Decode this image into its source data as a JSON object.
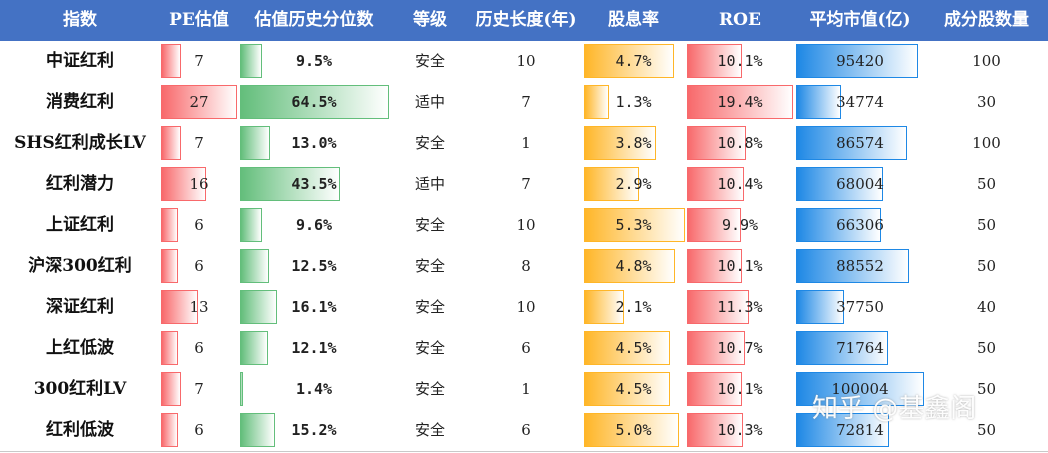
{
  "table": {
    "headers": [
      "指数",
      "PE估值",
      "估值历史分位数",
      "等级",
      "历史长度(年)",
      "股息率",
      "ROE",
      "平均市值(亿)",
      "成分股数量"
    ],
    "rows": [
      {
        "name": "中证红利",
        "pe": "7",
        "pct": "9.5%",
        "level": "安全",
        "years": "10",
        "div": "4.7%",
        "roe": "10.1%",
        "cap": "95420",
        "count": "100"
      },
      {
        "name": "消费红利",
        "pe": "27",
        "pct": "64.5%",
        "level": "适中",
        "years": "7",
        "div": "1.3%",
        "roe": "19.4%",
        "cap": "34774",
        "count": "30"
      },
      {
        "name": "SHS红利成长LV",
        "pe": "7",
        "pct": "13.0%",
        "level": "安全",
        "years": "1",
        "div": "3.8%",
        "roe": "10.8%",
        "cap": "86574",
        "count": "100"
      },
      {
        "name": "红利潜力",
        "pe": "16",
        "pct": "43.5%",
        "level": "适中",
        "years": "7",
        "div": "2.9%",
        "roe": "10.4%",
        "cap": "68004",
        "count": "50"
      },
      {
        "name": "上证红利",
        "pe": "6",
        "pct": "9.6%",
        "level": "安全",
        "years": "10",
        "div": "5.3%",
        "roe": "9.9%",
        "cap": "66306",
        "count": "50"
      },
      {
        "name": "沪深300红利",
        "pe": "6",
        "pct": "12.5%",
        "level": "安全",
        "years": "8",
        "div": "4.8%",
        "roe": "10.1%",
        "cap": "88552",
        "count": "50"
      },
      {
        "name": "深证红利",
        "pe": "13",
        "pct": "16.1%",
        "level": "安全",
        "years": "10",
        "div": "2.1%",
        "roe": "11.3%",
        "cap": "37750",
        "count": "40"
      },
      {
        "name": "上红低波",
        "pe": "6",
        "pct": "12.1%",
        "level": "安全",
        "years": "6",
        "div": "4.5%",
        "roe": "10.7%",
        "cap": "71764",
        "count": "50"
      },
      {
        "name": "300红利LV",
        "pe": "7",
        "pct": "1.4%",
        "level": "安全",
        "years": "1",
        "div": "4.5%",
        "roe": "10.1%",
        "cap": "100004",
        "count": "50"
      },
      {
        "name": "红利低波",
        "pe": "6",
        "pct": "15.2%",
        "level": "安全",
        "years": "6",
        "div": "5.0%",
        "roe": "10.3%",
        "cap": "72814",
        "count": "50"
      }
    ]
  },
  "watermark": "知乎 @基鑫阁",
  "colors": {
    "header": "#4472c4",
    "pe_bar": "#f8696b",
    "pct_bar": "#63be7b",
    "div_bar": "#ffb628",
    "roe_bar": "#f8696b",
    "cap_bar": "#1e88e5"
  }
}
